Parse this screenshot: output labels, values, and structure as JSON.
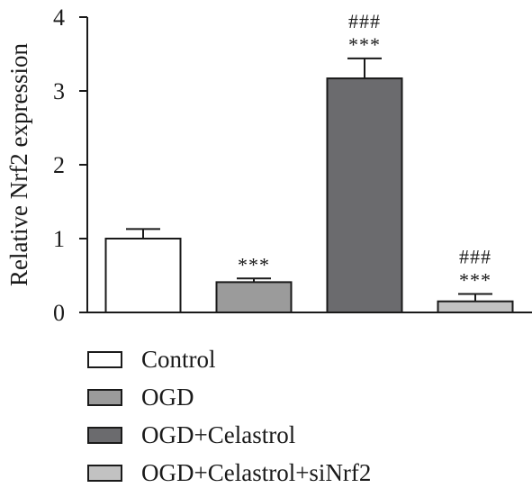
{
  "chart_data": {
    "type": "bar",
    "title": "",
    "xlabel": "",
    "ylabel": "Relative Nrf2 expression",
    "ylim": [
      0,
      4
    ],
    "yticks": [
      0,
      1,
      2,
      3,
      4
    ],
    "grid": false,
    "legend_position": "bottom-left",
    "categories": [
      "Control",
      "OGD",
      "OGD+Celastrol",
      "OGD+Celastrol+siNrf2"
    ],
    "values": [
      1.0,
      0.41,
      3.17,
      0.15
    ],
    "errors": [
      0.13,
      0.05,
      0.27,
      0.1
    ],
    "colors": [
      "#ffffff",
      "#9b9b9b",
      "#6b6b6e",
      "#c2c2c2"
    ],
    "significance": [
      [],
      [
        "***"
      ],
      [
        "###",
        "***"
      ],
      [
        "###",
        "***"
      ]
    ]
  }
}
